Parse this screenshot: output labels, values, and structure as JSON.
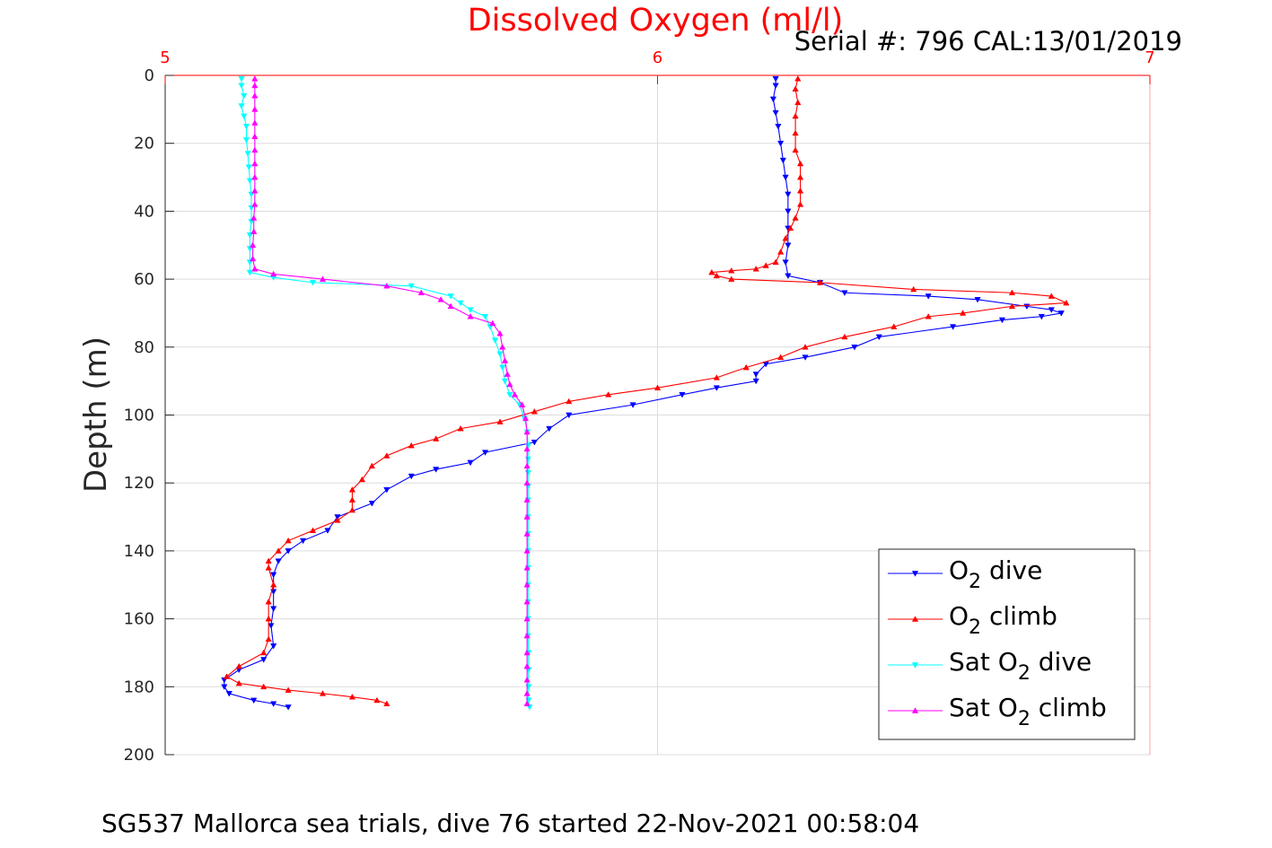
{
  "chart_data": {
    "type": "line",
    "title": "Dissolved Oxygen (ml/l)",
    "subtitle": "Serial #: 796  CAL:13/01/2019",
    "footer": "SG537 Mallorca sea trials, dive 76 started 22-Nov-2021 00:58:04",
    "xlabel": "",
    "ylabel": "Depth (m)",
    "xlim": [
      5,
      7
    ],
    "ylim": [
      0,
      200
    ],
    "y_reversed": true,
    "x_axis_position": "top",
    "x_ticks": [
      "5",
      "6",
      "7"
    ],
    "y_ticks": [
      "0",
      "20",
      "40",
      "60",
      "80",
      "100",
      "120",
      "140",
      "160",
      "180",
      "200"
    ],
    "grid": true,
    "legend_position": "bottom-right",
    "title_color": "#ff0000",
    "series": [
      {
        "name": "O2 dive",
        "legend": {
          "main": "O",
          "sub": "2",
          "rest": " dive"
        },
        "color": "#0000ff",
        "marker": "triangle-down",
        "points": [
          [
            6.24,
            1
          ],
          [
            6.24,
            3
          ],
          [
            6.235,
            7
          ],
          [
            6.24,
            11
          ],
          [
            6.245,
            15
          ],
          [
            6.25,
            20
          ],
          [
            6.255,
            25
          ],
          [
            6.26,
            30
          ],
          [
            6.265,
            35
          ],
          [
            6.265,
            40
          ],
          [
            6.265,
            45
          ],
          [
            6.265,
            50
          ],
          [
            6.26,
            55
          ],
          [
            6.265,
            59
          ],
          [
            6.33,
            61
          ],
          [
            6.38,
            64
          ],
          [
            6.55,
            65
          ],
          [
            6.65,
            66
          ],
          [
            6.75,
            68
          ],
          [
            6.8,
            69
          ],
          [
            6.82,
            70
          ],
          [
            6.78,
            71
          ],
          [
            6.7,
            72
          ],
          [
            6.6,
            74
          ],
          [
            6.45,
            77
          ],
          [
            6.4,
            80
          ],
          [
            6.3,
            83
          ],
          [
            6.22,
            85
          ],
          [
            6.2,
            88
          ],
          [
            6.2,
            90
          ],
          [
            6.12,
            92
          ],
          [
            6.05,
            94
          ],
          [
            5.95,
            97
          ],
          [
            5.82,
            100
          ],
          [
            5.78,
            104
          ],
          [
            5.75,
            108
          ],
          [
            5.65,
            111
          ],
          [
            5.62,
            114
          ],
          [
            5.55,
            116
          ],
          [
            5.5,
            118
          ],
          [
            5.45,
            122
          ],
          [
            5.42,
            126
          ],
          [
            5.35,
            130
          ],
          [
            5.33,
            134
          ],
          [
            5.28,
            137
          ],
          [
            5.25,
            140
          ],
          [
            5.23,
            143
          ],
          [
            5.22,
            147
          ],
          [
            5.22,
            152
          ],
          [
            5.22,
            157
          ],
          [
            5.215,
            162
          ],
          [
            5.22,
            168
          ],
          [
            5.2,
            172
          ],
          [
            5.15,
            175
          ],
          [
            5.12,
            178
          ],
          [
            5.12,
            180
          ],
          [
            5.13,
            182
          ],
          [
            5.18,
            184
          ],
          [
            5.22,
            185
          ],
          [
            5.25,
            186
          ]
        ]
      },
      {
        "name": "O2 climb",
        "legend": {
          "main": "O",
          "sub": "2",
          "rest": " climb"
        },
        "color": "#ff0000",
        "marker": "triangle-up",
        "points": [
          [
            5.45,
            185
          ],
          [
            5.43,
            184
          ],
          [
            5.38,
            183
          ],
          [
            5.32,
            182
          ],
          [
            5.25,
            181
          ],
          [
            5.2,
            180
          ],
          [
            5.15,
            179
          ],
          [
            5.125,
            177
          ],
          [
            5.15,
            174
          ],
          [
            5.2,
            170
          ],
          [
            5.21,
            166
          ],
          [
            5.21,
            160
          ],
          [
            5.21,
            155
          ],
          [
            5.22,
            150
          ],
          [
            5.21,
            145
          ],
          [
            5.21,
            143
          ],
          [
            5.23,
            140
          ],
          [
            5.25,
            137
          ],
          [
            5.3,
            134
          ],
          [
            5.35,
            131
          ],
          [
            5.38,
            128
          ],
          [
            5.38,
            125
          ],
          [
            5.38,
            122
          ],
          [
            5.4,
            119
          ],
          [
            5.42,
            115
          ],
          [
            5.45,
            112
          ],
          [
            5.5,
            109
          ],
          [
            5.55,
            107
          ],
          [
            5.6,
            104
          ],
          [
            5.68,
            102
          ],
          [
            5.75,
            99
          ],
          [
            5.82,
            96
          ],
          [
            5.9,
            94
          ],
          [
            6.0,
            92
          ],
          [
            6.12,
            89
          ],
          [
            6.18,
            86
          ],
          [
            6.25,
            83
          ],
          [
            6.3,
            80
          ],
          [
            6.38,
            77
          ],
          [
            6.48,
            74
          ],
          [
            6.55,
            71
          ],
          [
            6.62,
            70
          ],
          [
            6.72,
            68
          ],
          [
            6.83,
            67
          ],
          [
            6.8,
            65
          ],
          [
            6.72,
            64
          ],
          [
            6.52,
            63
          ],
          [
            6.33,
            61
          ],
          [
            6.15,
            60
          ],
          [
            6.12,
            59
          ],
          [
            6.11,
            58
          ],
          [
            6.15,
            57.5
          ],
          [
            6.2,
            57
          ],
          [
            6.22,
            56
          ],
          [
            6.24,
            55
          ],
          [
            6.25,
            52
          ],
          [
            6.26,
            48
          ],
          [
            6.27,
            45
          ],
          [
            6.28,
            42
          ],
          [
            6.29,
            38
          ],
          [
            6.29,
            34
          ],
          [
            6.29,
            30
          ],
          [
            6.29,
            26
          ],
          [
            6.28,
            22
          ],
          [
            6.28,
            17
          ],
          [
            6.28,
            12
          ],
          [
            6.285,
            8
          ],
          [
            6.28,
            4
          ],
          [
            6.285,
            1
          ]
        ]
      },
      {
        "name": "Sat O2 dive",
        "legend": {
          "main": "Sat O",
          "sub": "2",
          "rest": " dive"
        },
        "color": "#00ffff",
        "marker": "triangle-down",
        "points": [
          [
            5.155,
            1
          ],
          [
            5.155,
            3
          ],
          [
            5.16,
            6
          ],
          [
            5.155,
            9
          ],
          [
            5.16,
            12
          ],
          [
            5.165,
            15
          ],
          [
            5.165,
            19
          ],
          [
            5.168,
            23
          ],
          [
            5.17,
            27
          ],
          [
            5.172,
            31
          ],
          [
            5.175,
            35
          ],
          [
            5.175,
            39
          ],
          [
            5.175,
            43
          ],
          [
            5.172,
            47
          ],
          [
            5.172,
            51
          ],
          [
            5.172,
            55
          ],
          [
            5.172,
            58
          ],
          [
            5.22,
            59.5
          ],
          [
            5.3,
            61
          ],
          [
            5.5,
            62
          ],
          [
            5.58,
            65
          ],
          [
            5.6,
            67
          ],
          [
            5.62,
            69
          ],
          [
            5.65,
            71
          ],
          [
            5.66,
            74
          ],
          [
            5.67,
            78
          ],
          [
            5.68,
            82
          ],
          [
            5.685,
            86
          ],
          [
            5.69,
            90
          ],
          [
            5.7,
            94
          ],
          [
            5.72,
            97
          ],
          [
            5.73,
            101
          ],
          [
            5.735,
            105
          ],
          [
            5.737,
            109
          ],
          [
            5.737,
            113
          ],
          [
            5.737,
            117
          ],
          [
            5.737,
            121
          ],
          [
            5.737,
            125
          ],
          [
            5.737,
            130
          ],
          [
            5.737,
            135
          ],
          [
            5.737,
            140
          ],
          [
            5.737,
            145
          ],
          [
            5.737,
            150
          ],
          [
            5.737,
            155
          ],
          [
            5.737,
            160
          ],
          [
            5.737,
            165
          ],
          [
            5.738,
            170
          ],
          [
            5.738,
            175
          ],
          [
            5.738,
            180
          ],
          [
            5.738,
            184
          ],
          [
            5.74,
            186
          ]
        ]
      },
      {
        "name": "Sat O2 climb",
        "legend": {
          "main": "Sat O",
          "sub": "2",
          "rest": " climb"
        },
        "color": "#ff00ff",
        "marker": "triangle-up",
        "points": [
          [
            5.735,
            185
          ],
          [
            5.735,
            182
          ],
          [
            5.735,
            178
          ],
          [
            5.735,
            174
          ],
          [
            5.735,
            170
          ],
          [
            5.735,
            165
          ],
          [
            5.735,
            160
          ],
          [
            5.735,
            155
          ],
          [
            5.735,
            150
          ],
          [
            5.735,
            145
          ],
          [
            5.735,
            140
          ],
          [
            5.735,
            135
          ],
          [
            5.735,
            130
          ],
          [
            5.735,
            125
          ],
          [
            5.735,
            120
          ],
          [
            5.735,
            115
          ],
          [
            5.735,
            110
          ],
          [
            5.735,
            105
          ],
          [
            5.732,
            101
          ],
          [
            5.725,
            97
          ],
          [
            5.71,
            94
          ],
          [
            5.7,
            91
          ],
          [
            5.695,
            88
          ],
          [
            5.69,
            84
          ],
          [
            5.685,
            80
          ],
          [
            5.68,
            76
          ],
          [
            5.665,
            73
          ],
          [
            5.62,
            71
          ],
          [
            5.58,
            68
          ],
          [
            5.56,
            66
          ],
          [
            5.52,
            64
          ],
          [
            5.45,
            62
          ],
          [
            5.32,
            60
          ],
          [
            5.22,
            58.5
          ],
          [
            5.182,
            57
          ],
          [
            5.178,
            54
          ],
          [
            5.178,
            50
          ],
          [
            5.18,
            46
          ],
          [
            5.18,
            42
          ],
          [
            5.182,
            38
          ],
          [
            5.182,
            34
          ],
          [
            5.182,
            30
          ],
          [
            5.182,
            26
          ],
          [
            5.182,
            22
          ],
          [
            5.182,
            18
          ],
          [
            5.182,
            14
          ],
          [
            5.182,
            10
          ],
          [
            5.182,
            6
          ],
          [
            5.182,
            3
          ],
          [
            5.182,
            1
          ]
        ]
      }
    ]
  }
}
